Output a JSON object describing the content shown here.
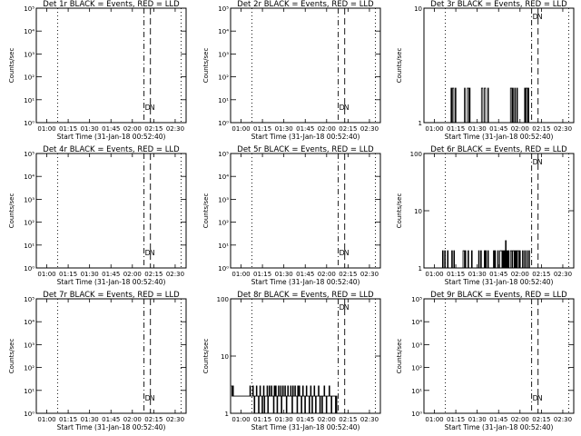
{
  "chart_data": [
    {
      "type": "line",
      "title": "Det 1r BLACK = Events, RED = LLD",
      "xlabel": "Start Time (31-Jan-18 00:52:40)",
      "ylabel": "Counts/sec",
      "yscale": "log",
      "ylim": [
        1,
        100000
      ],
      "yticks": [
        1,
        10,
        100,
        1000,
        10000,
        100000
      ],
      "ytick_labels": [
        "10⁰",
        "10¹",
        "10²",
        "10³",
        "10⁴",
        "10⁵"
      ],
      "xlim_min": [
        0,
        105
      ],
      "xticks_min": [
        7.33,
        22.33,
        37.33,
        52.33,
        67.33,
        82.33,
        97.33
      ],
      "xtick_labels": [
        "01:00",
        "01:15",
        "01:30",
        "01:45",
        "02:00",
        "02:15",
        "02:30"
      ],
      "vlines": [
        {
          "style": "dotted",
          "x_min": 15
        },
        {
          "style": "dashdot",
          "x_min": 75.5
        },
        {
          "style": "dashed",
          "x_min": 80
        },
        {
          "style": "dotted",
          "x_min": 101.5
        }
      ],
      "markers": [
        "D",
        "N"
      ],
      "series": [
        {
          "y": []
        }
      ]
    },
    {
      "type": "line",
      "title": "Det 2r BLACK = Events, RED = LLD",
      "xlabel": "Start Time (31-Jan-18 00:52:40)",
      "ylabel": "Counts/sec",
      "yscale": "log",
      "ylim": [
        1,
        100000
      ],
      "yticks": [
        1,
        10,
        100,
        1000,
        10000,
        100000
      ],
      "ytick_labels": [
        "10⁰",
        "10¹",
        "10²",
        "10³",
        "10⁴",
        "10⁵"
      ],
      "xlim_min": [
        0,
        105
      ],
      "xticks_min": [
        7.33,
        22.33,
        37.33,
        52.33,
        67.33,
        82.33,
        97.33
      ],
      "xtick_labels": [
        "01:00",
        "01:15",
        "01:30",
        "01:45",
        "02:00",
        "02:15",
        "02:30"
      ],
      "vlines": [
        {
          "style": "dotted",
          "x_min": 15
        },
        {
          "style": "dashdot",
          "x_min": 75.5
        },
        {
          "style": "dashed",
          "x_min": 80
        },
        {
          "style": "dotted",
          "x_min": 101.5
        }
      ],
      "markers": [
        "D",
        "N"
      ],
      "series": [
        {
          "y": []
        }
      ]
    },
    {
      "type": "line",
      "title": "Det 3r BLACK = Events, RED = LLD",
      "xlabel": "Start Time (31-Jan-18 00:52:40)",
      "ylabel": "Counts/sec",
      "yscale": "log",
      "ylim": [
        1,
        10
      ],
      "yticks": [
        1,
        10
      ],
      "ytick_labels": [
        "1",
        "10"
      ],
      "xlim_min": [
        0,
        105
      ],
      "xticks_min": [
        7.33,
        22.33,
        37.33,
        52.33,
        67.33,
        82.33,
        97.33
      ],
      "xtick_labels": [
        "01:00",
        "01:15",
        "01:30",
        "01:45",
        "02:00",
        "02:15",
        "02:30"
      ],
      "vlines": [
        {
          "style": "dotted",
          "x_min": 15
        },
        {
          "style": "dashdot",
          "x_min": 75.5
        },
        {
          "style": "dashed",
          "x_min": 80
        },
        {
          "style": "dotted",
          "x_min": 101.5
        }
      ],
      "markers": [
        "D",
        "N"
      ],
      "series": [
        {
          "x_start": 15,
          "x_end": 75,
          "y": [
            1,
            1,
            1,
            1,
            1,
            1,
            1,
            1,
            2,
            1,
            2,
            2,
            1,
            1,
            2,
            1,
            1,
            1,
            1,
            1,
            1,
            1,
            1,
            1,
            1,
            1,
            1,
            2,
            1,
            1,
            1,
            2,
            2,
            1,
            2,
            1,
            1,
            1,
            1,
            1,
            1,
            1,
            1,
            1,
            1,
            1,
            1,
            1,
            1,
            1,
            1,
            2,
            2,
            1,
            1,
            2,
            2,
            1,
            1,
            1,
            2,
            1,
            1,
            1,
            1,
            1,
            1,
            1,
            1,
            1,
            1,
            1,
            1,
            1,
            1,
            1,
            1,
            1,
            1,
            1,
            1,
            1,
            1,
            1,
            1,
            1,
            1,
            1,
            1,
            1,
            1,
            1,
            2,
            2,
            1,
            2,
            1,
            1,
            2,
            1,
            1,
            2,
            1,
            1,
            1,
            1,
            1,
            1,
            1,
            1,
            1,
            1,
            2,
            1,
            2,
            2,
            1,
            2,
            1,
            1,
            1
          ]
        }
      ]
    },
    {
      "type": "line",
      "title": "Det 4r BLACK = Events, RED = LLD",
      "xlabel": "Start Time (31-Jan-18 00:52:40)",
      "ylabel": "Counts/sec",
      "yscale": "log",
      "ylim": [
        1,
        100000
      ],
      "yticks": [
        1,
        10,
        100,
        1000,
        10000,
        100000
      ],
      "ytick_labels": [
        "10⁰",
        "10¹",
        "10²",
        "10³",
        "10⁴",
        "10⁵"
      ],
      "xlim_min": [
        0,
        105
      ],
      "xticks_min": [
        7.33,
        22.33,
        37.33,
        52.33,
        67.33,
        82.33,
        97.33
      ],
      "xtick_labels": [
        "01:00",
        "01:15",
        "01:30",
        "01:45",
        "02:00",
        "02:15",
        "02:30"
      ],
      "vlines": [
        {
          "style": "dotted",
          "x_min": 15
        },
        {
          "style": "dashdot",
          "x_min": 75.5
        },
        {
          "style": "dashed",
          "x_min": 80
        },
        {
          "style": "dotted",
          "x_min": 101.5
        }
      ],
      "markers": [
        "D",
        "N"
      ],
      "series": [
        {
          "y": []
        }
      ]
    },
    {
      "type": "line",
      "title": "Det 5r BLACK = Events, RED = LLD",
      "xlabel": "Start Time (31-Jan-18 00:52:40)",
      "ylabel": "Counts/sec",
      "yscale": "log",
      "ylim": [
        1,
        100000
      ],
      "yticks": [
        1,
        10,
        100,
        1000,
        10000,
        100000
      ],
      "ytick_labels": [
        "10⁰",
        "10¹",
        "10²",
        "10³",
        "10⁴",
        "10⁵"
      ],
      "xlim_min": [
        0,
        105
      ],
      "xticks_min": [
        7.33,
        22.33,
        37.33,
        52.33,
        67.33,
        82.33,
        97.33
      ],
      "xtick_labels": [
        "01:00",
        "01:15",
        "01:30",
        "01:45",
        "02:00",
        "02:15",
        "02:30"
      ],
      "vlines": [
        {
          "style": "dotted",
          "x_min": 15
        },
        {
          "style": "dashdot",
          "x_min": 75.5
        },
        {
          "style": "dashed",
          "x_min": 80
        },
        {
          "style": "dotted",
          "x_min": 101.5
        }
      ],
      "markers": [
        "D",
        "N"
      ],
      "series": [
        {
          "y": []
        }
      ]
    },
    {
      "type": "line",
      "title": "Det 6r BLACK = Events, RED = LLD",
      "xlabel": "Start Time (31-Jan-18 00:52:40)",
      "ylabel": "Counts/sec",
      "yscale": "log",
      "ylim": [
        1,
        100
      ],
      "yticks": [
        1,
        10,
        100
      ],
      "ytick_labels": [
        "1",
        "10",
        "100"
      ],
      "xlim_min": [
        0,
        105
      ],
      "xticks_min": [
        7.33,
        22.33,
        37.33,
        52.33,
        67.33,
        82.33,
        97.33
      ],
      "xtick_labels": [
        "01:00",
        "01:15",
        "01:30",
        "01:45",
        "02:00",
        "02:15",
        "02:30"
      ],
      "vlines": [
        {
          "style": "dotted",
          "x_min": 15
        },
        {
          "style": "dashdot",
          "x_min": 75.5
        },
        {
          "style": "dashed",
          "x_min": 80
        },
        {
          "style": "dotted",
          "x_min": 101.5
        }
      ],
      "markers": [
        "D",
        "N"
      ],
      "series": [
        {
          "x_start": 11,
          "x_end": 75,
          "y": [
            1,
            1,
            1,
            1,
            2,
            1,
            1,
            2,
            1,
            1,
            1,
            2,
            1,
            1,
            1,
            1,
            1,
            2,
            1,
            1,
            2,
            1,
            1,
            1,
            1,
            1,
            1,
            1,
            1,
            1,
            1,
            1,
            1,
            2,
            2,
            1,
            2,
            1,
            1,
            1,
            2,
            1,
            1,
            1,
            1,
            2,
            1,
            1,
            1,
            1,
            1,
            1,
            1,
            1,
            1,
            2,
            1,
            1,
            2,
            1,
            1,
            1,
            1,
            2,
            1,
            2,
            1,
            1,
            2,
            1,
            1,
            1,
            1,
            1,
            1,
            1,
            2,
            1,
            2,
            1,
            1,
            1,
            2,
            1,
            1,
            2,
            2,
            2,
            1,
            2,
            1,
            2,
            1,
            3,
            1,
            2,
            1,
            2,
            1,
            1,
            2,
            2,
            1,
            2,
            2,
            1,
            2,
            1,
            2,
            1,
            2,
            2,
            1,
            2,
            1,
            1,
            1,
            2,
            1,
            1,
            2,
            1,
            1,
            2,
            1,
            1,
            2,
            1,
            1
          ]
        }
      ]
    },
    {
      "type": "line",
      "title": "Det 7r BLACK = Events, RED = LLD",
      "xlabel": "Start Time (31-Jan-18 00:52:40)",
      "ylabel": "Counts/sec",
      "yscale": "log",
      "ylim": [
        1,
        100000
      ],
      "yticks": [
        1,
        10,
        100,
        1000,
        10000,
        100000
      ],
      "ytick_labels": [
        "10⁰",
        "10¹",
        "10²",
        "10³",
        "10⁴",
        "10⁵"
      ],
      "xlim_min": [
        0,
        105
      ],
      "xticks_min": [
        7.33,
        22.33,
        37.33,
        52.33,
        67.33,
        82.33,
        97.33
      ],
      "xtick_labels": [
        "01:00",
        "01:15",
        "01:30",
        "01:45",
        "02:00",
        "02:15",
        "02:30"
      ],
      "vlines": [
        {
          "style": "dotted",
          "x_min": 15
        },
        {
          "style": "dashdot",
          "x_min": 75.5
        },
        {
          "style": "dashed",
          "x_min": 80
        },
        {
          "style": "dotted",
          "x_min": 101.5
        }
      ],
      "markers": [
        "D",
        "N"
      ],
      "series": [
        {
          "y": []
        }
      ]
    },
    {
      "type": "line",
      "title": "Det 8r BLACK = Events, RED = LLD",
      "xlabel": "Start Time (31-Jan-18 00:52:40)",
      "ylabel": "Counts/sec",
      "yscale": "log",
      "ylim": [
        1,
        100
      ],
      "yticks": [
        1,
        10,
        100
      ],
      "ytick_labels": [
        "1",
        "10",
        "100"
      ],
      "xlim_min": [
        0,
        105
      ],
      "xticks_min": [
        7.33,
        22.33,
        37.33,
        52.33,
        67.33,
        82.33,
        97.33
      ],
      "xtick_labels": [
        "01:00",
        "01:15",
        "01:30",
        "01:45",
        "02:00",
        "02:15",
        "02:30"
      ],
      "vlines": [
        {
          "style": "dotted",
          "x_min": 15
        },
        {
          "style": "dashdot",
          "x_min": 75.5
        },
        {
          "style": "dashed",
          "x_min": 80
        },
        {
          "style": "dotted",
          "x_min": 101.5
        }
      ],
      "markers": [
        "D",
        "N"
      ],
      "series": [
        {
          "x_start": 0.5,
          "x_end": 75,
          "y": [
            3,
            2,
            3,
            2,
            2,
            2,
            2,
            2,
            2,
            2,
            2,
            2,
            2,
            2,
            2,
            2,
            2,
            2,
            2,
            2,
            2,
            2,
            2,
            2,
            2,
            2,
            3,
            2,
            2,
            2,
            3,
            2,
            1,
            2,
            2,
            3,
            2,
            2,
            1,
            2,
            3,
            2,
            2,
            1,
            2,
            3,
            1,
            2,
            2,
            2,
            3,
            1,
            2,
            3,
            2,
            2,
            3,
            2,
            2,
            1,
            3,
            2,
            3,
            2,
            1,
            2,
            3,
            2,
            2,
            3,
            1,
            2,
            3,
            2,
            2,
            3,
            2,
            1,
            2,
            3,
            2,
            2,
            2,
            3,
            2,
            1,
            3,
            2,
            2,
            3,
            2,
            2,
            1,
            3,
            2,
            3,
            2,
            2,
            1,
            2,
            3,
            2,
            2,
            1,
            2,
            3,
            2,
            2,
            2,
            1,
            2,
            3,
            2,
            1,
            2,
            2,
            3,
            2,
            1,
            2,
            2,
            2,
            3,
            2,
            1,
            2,
            2,
            1,
            2,
            2,
            3,
            2,
            2,
            1,
            2,
            2,
            2,
            3,
            2,
            2,
            1,
            2,
            2,
            2,
            2,
            2,
            1,
            2,
            1
          ]
        }
      ]
    },
    {
      "type": "line",
      "title": "Det 9r BLACK = Events, RED = LLD",
      "xlabel": "Start Time (31-Jan-18 00:52:40)",
      "ylabel": "Counts/sec",
      "yscale": "log",
      "ylim": [
        1,
        100000
      ],
      "yticks": [
        1,
        10,
        100,
        1000,
        10000,
        100000
      ],
      "ytick_labels": [
        "10⁰",
        "10¹",
        "10²",
        "10³",
        "10⁴",
        "10⁵"
      ],
      "xlim_min": [
        0,
        105
      ],
      "xticks_min": [
        7.33,
        22.33,
        37.33,
        52.33,
        67.33,
        82.33,
        97.33
      ],
      "xtick_labels": [
        "01:00",
        "01:15",
        "01:30",
        "01:45",
        "02:00",
        "02:15",
        "02:30"
      ],
      "vlines": [
        {
          "style": "dotted",
          "x_min": 15
        },
        {
          "style": "dashdot",
          "x_min": 75.5
        },
        {
          "style": "dashed",
          "x_min": 80
        },
        {
          "style": "dotted",
          "x_min": 101.5
        }
      ],
      "markers": [
        "D",
        "N"
      ],
      "series": [
        {
          "y": []
        }
      ]
    }
  ]
}
